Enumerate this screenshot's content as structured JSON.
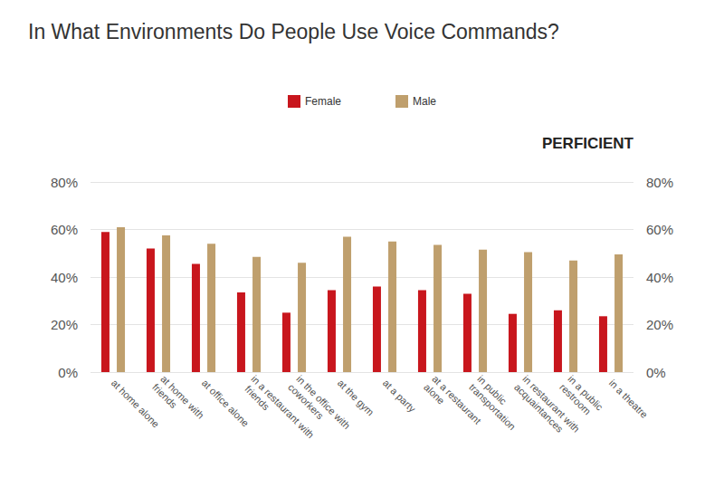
{
  "chart_data": {
    "type": "bar",
    "title": "In What Environments Do People Use Voice Commands?",
    "categories": [
      "at home alone",
      "at home with friends",
      "at office alone",
      "in a restaurant with friends",
      "in the office with coworkers",
      "at the gym",
      "at a party",
      "at a restaurant alone",
      "in public transportation",
      "in restaurant with acquaintances",
      "in a public restroom",
      "in a theatre"
    ],
    "series": [
      {
        "name": "Female",
        "color": "#c8161d",
        "values": [
          59,
          52,
          45.5,
          33.5,
          25,
          34.5,
          36,
          34.5,
          33,
          24.5,
          26,
          23.5
        ]
      },
      {
        "name": "Male",
        "color": "#bf9f6d",
        "values": [
          61,
          57.5,
          54,
          48.5,
          46,
          57,
          55,
          53.5,
          51.5,
          50.5,
          47,
          49.5
        ]
      }
    ],
    "ylim": [
      0,
      80
    ],
    "yticks": [
      {
        "value": 0,
        "label": "0%"
      },
      {
        "value": 20,
        "label": "20%"
      },
      {
        "value": 40,
        "label": "40%"
      },
      {
        "value": 60,
        "label": "60%"
      },
      {
        "value": 80,
        "label": "80%"
      }
    ],
    "y2lim": [
      0,
      80
    ],
    "y2ticks": [
      {
        "value": 0,
        "label": "0%"
      },
      {
        "value": 20,
        "label": "20%"
      },
      {
        "value": 40,
        "label": "40%"
      },
      {
        "value": 60,
        "label": "60%"
      },
      {
        "value": 80,
        "label": "80%"
      }
    ],
    "grid": true,
    "legend": "top",
    "annotations": [
      {
        "text": "PERFICIENT"
      }
    ]
  }
}
